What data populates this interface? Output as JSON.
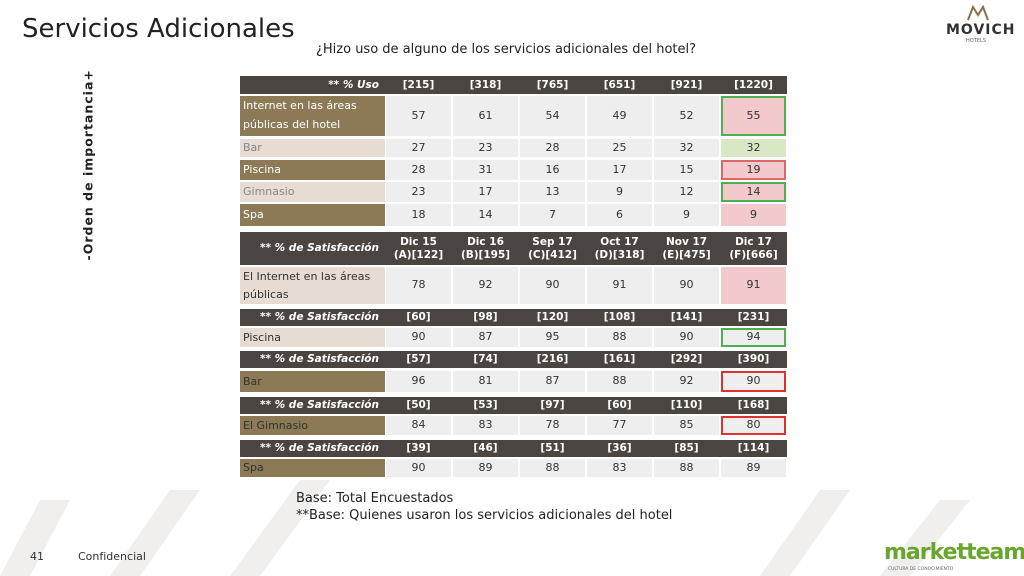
{
  "header": {
    "title": "Servicios Adicionales",
    "logo": "MOVICH",
    "logo_sub": "HOTELS"
  },
  "question": "¿Hizo uso de alguno de los servicios adicionales del hotel?",
  "side_label": {
    "minus": "-",
    "text": "Orden de importancia",
    "plus": "+"
  },
  "usage_table": {
    "header": [
      "** % Uso",
      "[215]",
      "[318]",
      "[765]",
      "[651]",
      "[921]",
      "[1220]"
    ],
    "rows": [
      {
        "label": "Internet en las áreas públicas del hotel",
        "values": [
          57,
          61,
          54,
          49,
          52,
          55
        ]
      },
      {
        "label": "Bar",
        "values": [
          27,
          23,
          28,
          25,
          32,
          32
        ]
      },
      {
        "label": "Piscina",
        "values": [
          28,
          31,
          16,
          17,
          15,
          19
        ]
      },
      {
        "label": "Gimnasio",
        "values": [
          23,
          17,
          13,
          9,
          12,
          14
        ]
      },
      {
        "label": "Spa",
        "values": [
          18,
          14,
          7,
          6,
          9,
          9
        ]
      }
    ]
  },
  "satisfaction_blocks": [
    {
      "header": {
        "label": "** % de Satisfacción",
        "columns": [
          [
            "Dic 15",
            "(A)[122]"
          ],
          [
            "Dic 16",
            "(B)[195]"
          ],
          [
            "Sep 17",
            "(C)[412]"
          ],
          [
            "Oct 17",
            "(D)[318]"
          ],
          [
            "Nov 17",
            "(E)[475]"
          ],
          [
            "Dic 17",
            "(F)[666]"
          ]
        ]
      },
      "row": {
        "label": "El Internet en las áreas públicas",
        "values": [
          78,
          92,
          90,
          91,
          90,
          91
        ]
      }
    },
    {
      "header": {
        "label": "** % de Satisfacción",
        "columns": [
          [
            "[60]"
          ],
          [
            "[98]"
          ],
          [
            "[120]"
          ],
          [
            "[108]"
          ],
          [
            "[141]"
          ],
          [
            "[231]"
          ]
        ]
      },
      "row": {
        "label": "Piscina",
        "values": [
          90,
          87,
          95,
          88,
          90,
          94
        ]
      }
    },
    {
      "header": {
        "label": "** % de Satisfacción",
        "columns": [
          [
            "[57]"
          ],
          [
            "[74]"
          ],
          [
            "[216]"
          ],
          [
            "[161]"
          ],
          [
            "[292]"
          ],
          [
            "[390]"
          ]
        ]
      },
      "row": {
        "label": "Bar",
        "values": [
          96,
          81,
          87,
          88,
          92,
          90
        ]
      }
    },
    {
      "header": {
        "label": "** % de Satisfacción",
        "columns": [
          [
            "[50]"
          ],
          [
            "[53]"
          ],
          [
            "[97]"
          ],
          [
            "[60]"
          ],
          [
            "[110]"
          ],
          [
            "[168]"
          ]
        ]
      },
      "row": {
        "label": "El Gimnasio",
        "values": [
          84,
          83,
          78,
          77,
          85,
          80
        ]
      }
    },
    {
      "header": {
        "label": "** % de Satisfacción",
        "columns": [
          [
            "[39]"
          ],
          [
            "[46]"
          ],
          [
            "[51]"
          ],
          [
            "[36]"
          ],
          [
            "[85]"
          ],
          [
            "[114]"
          ]
        ]
      },
      "row": {
        "label": "Spa",
        "values": [
          90,
          89,
          88,
          83,
          88,
          89
        ]
      }
    }
  ],
  "notes": [
    "Base: Total Encuestados",
    "**Base: Quienes usaron los servicios adicionales del hotel"
  ],
  "footer": {
    "page": "41",
    "text": "Confidencial",
    "brand": "marketteam",
    "brand_sub": "CULTURA DE CONOCIMIENTO"
  }
}
